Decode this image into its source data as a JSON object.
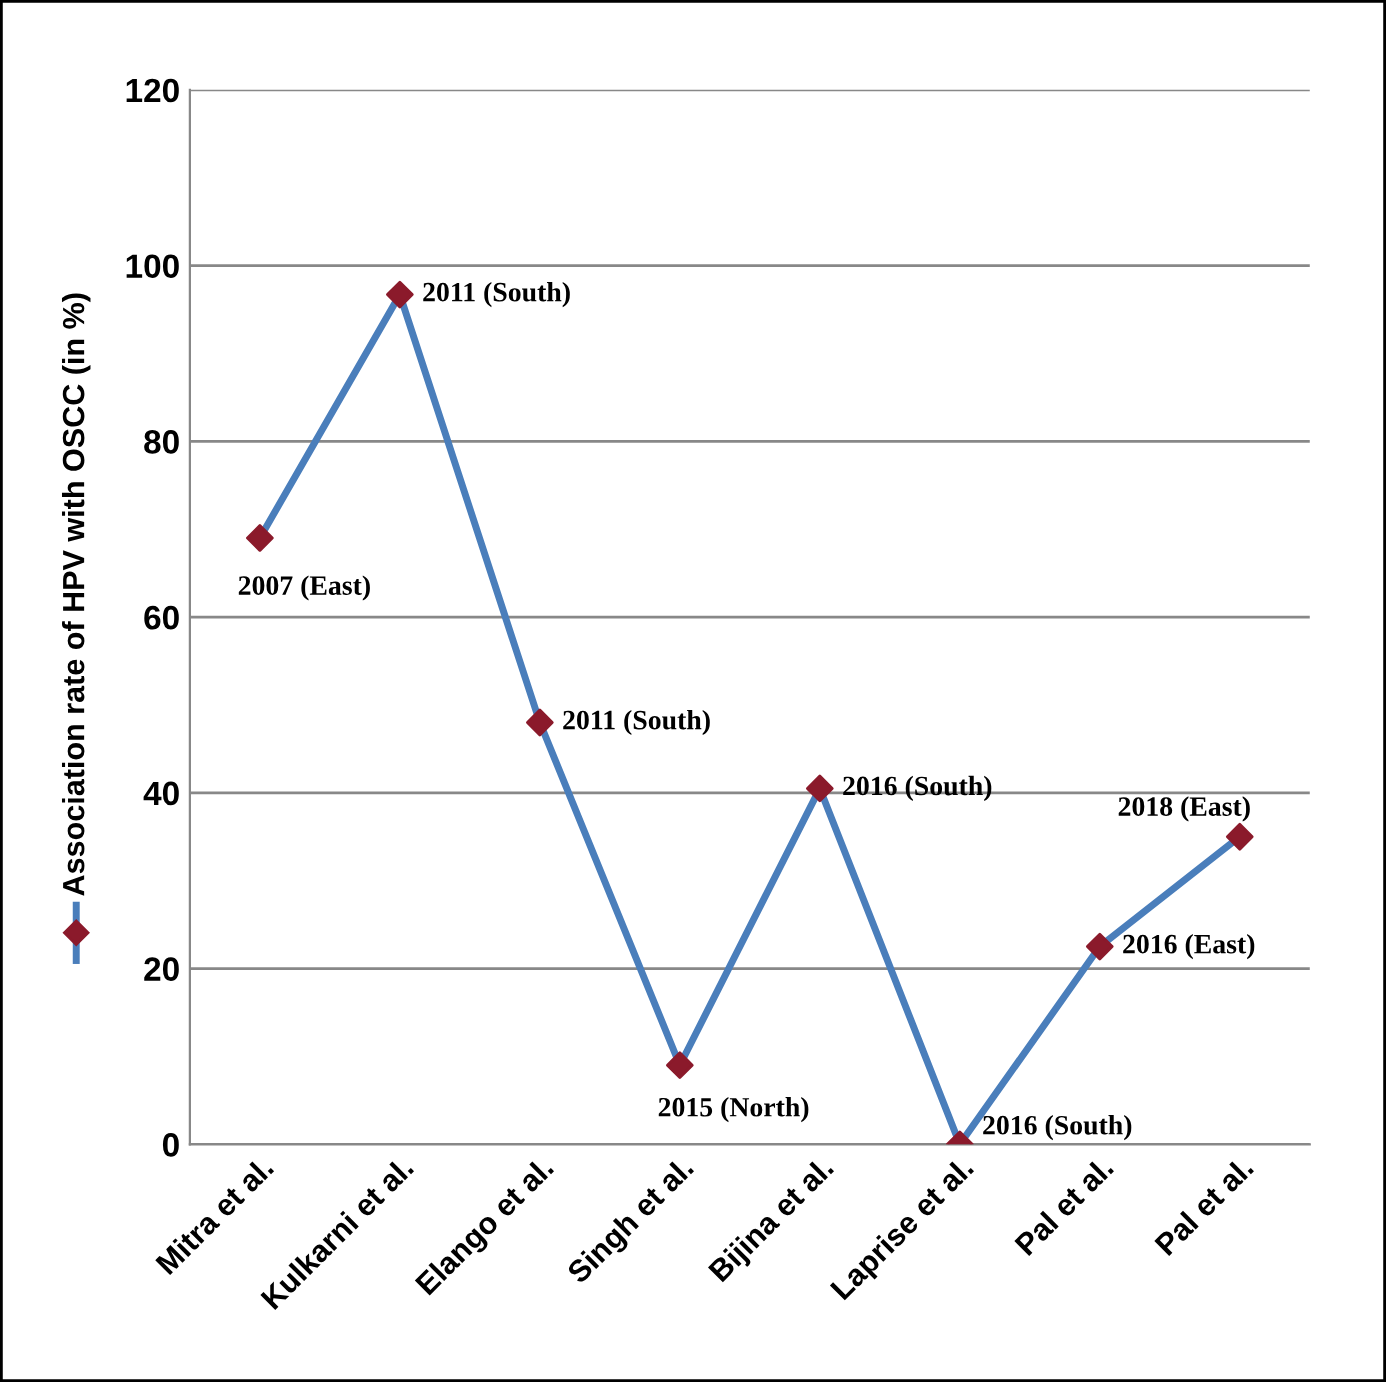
{
  "chart_data": {
    "type": "line",
    "categories": [
      "Mitra et al.",
      "Kulkarni et al.",
      "Elango et al.",
      "Singh et al.",
      "Bijina et al.",
      "Laprise et al.",
      "Pal et al.",
      "Pal et al."
    ],
    "series": [
      {
        "name": "Association rate of HPV with OSCC (in %)",
        "color": "#4a7ebb",
        "colors": [
          "#8b1a2b",
          "#8b1a2b",
          "#8b1a2b",
          "#8b1a2b",
          "#8b1a2b",
          "#8b1a2b",
          "#8b1a2b",
          "#8b1a2b"
        ],
        "values": [
          69,
          96.7,
          48,
          9,
          40.5,
          0,
          22.5,
          35
        ]
      }
    ],
    "ylim": [
      0,
      120
    ],
    "yticks": [
      0,
      20,
      40,
      60,
      80,
      100,
      120
    ],
    "grid": "y",
    "legend": "left",
    "marker": "diamond",
    "line_style": "solid",
    "annotations": [
      "2007 (East)",
      "2011 (South)",
      "2011 (South)",
      "2015 (North)",
      "2016 (South)",
      "2016 (South)",
      "2016 (East)",
      "2018 (East)"
    ]
  }
}
